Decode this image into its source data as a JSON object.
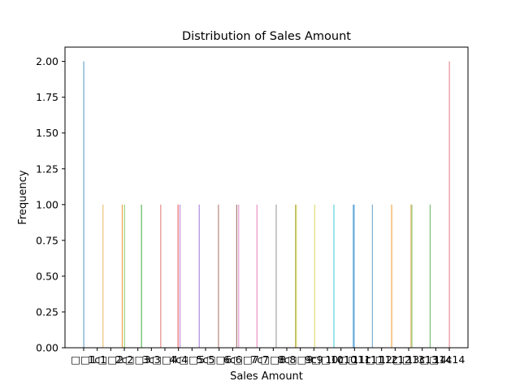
{
  "chart_data": {
    "type": "bar",
    "title": "Distribution of Sales Amount",
    "xlabel": "Sales Amount",
    "ylabel": "Frequency",
    "ylim": [
      0,
      2.1
    ],
    "yticks": [
      "0.00",
      "0.25",
      "0.50",
      "0.75",
      "1.00",
      "1.25",
      "1.50",
      "1.75",
      "2.00"
    ],
    "xticks": [
      "□□1",
      "1c1",
      "□□2",
      "2c2",
      "□□3",
      "3c3",
      "□□4",
      "4c4",
      "□□5",
      "5c5",
      "□□6",
      "6c6",
      "□□7",
      "7c7",
      "□□8",
      "8c8",
      "□□9",
      "9c9",
      "□□10",
      "10c10",
      "□□11",
      "11c11",
      "□□12",
      "12c12",
      "□□13",
      "13c13",
      "□□14",
      "14c14"
    ],
    "grid": false,
    "legend": "none",
    "bars": [
      {
        "x": 1,
        "value": 2,
        "color": "#6aa6c8"
      },
      {
        "x": 2,
        "value": 1,
        "color": "#f0c27a"
      },
      {
        "x": 3,
        "value": 1,
        "color": "#f0a64a"
      },
      {
        "x": 3.12,
        "value": 1,
        "color": "#9bd07a"
      },
      {
        "x": 4,
        "value": 1,
        "color": "#59b85a"
      },
      {
        "x": 5,
        "value": 1,
        "color": "#e88a8a"
      },
      {
        "x": 5.9,
        "value": 1,
        "color": "#e56b6b"
      },
      {
        "x": 6,
        "value": 1,
        "color": "#c78fd3"
      },
      {
        "x": 7,
        "value": 1,
        "color": "#a98ad8"
      },
      {
        "x": 8,
        "value": 1,
        "color": "#b38b7e"
      },
      {
        "x": 8.95,
        "value": 1,
        "color": "#a37b72"
      },
      {
        "x": 9.05,
        "value": 1,
        "color": "#e69ad0"
      },
      {
        "x": 10,
        "value": 1,
        "color": "#ee94c4"
      },
      {
        "x": 11,
        "value": 1,
        "color": "#a5a5a5"
      },
      {
        "x": 12,
        "value": 1,
        "color": "#b7b760"
      },
      {
        "x": 12.05,
        "value": 1,
        "color": "#d8d86a"
      },
      {
        "x": 13,
        "value": 1,
        "color": "#dede76"
      },
      {
        "x": 14,
        "value": 1,
        "color": "#59d0d8"
      },
      {
        "x": 15,
        "value": 1,
        "color": "#7ab8e0"
      },
      {
        "x": 15.05,
        "value": 1,
        "color": "#5aa0d8"
      },
      {
        "x": 16,
        "value": 1,
        "color": "#7ab0c8"
      },
      {
        "x": 17,
        "value": 1,
        "color": "#f0a64a"
      },
      {
        "x": 18,
        "value": 1,
        "color": "#f0bc7a"
      },
      {
        "x": 18.05,
        "value": 1,
        "color": "#8fc86a"
      },
      {
        "x": 19,
        "value": 1,
        "color": "#79c07a"
      },
      {
        "x": 20,
        "value": 2,
        "color": "#ea8f9a"
      }
    ]
  }
}
